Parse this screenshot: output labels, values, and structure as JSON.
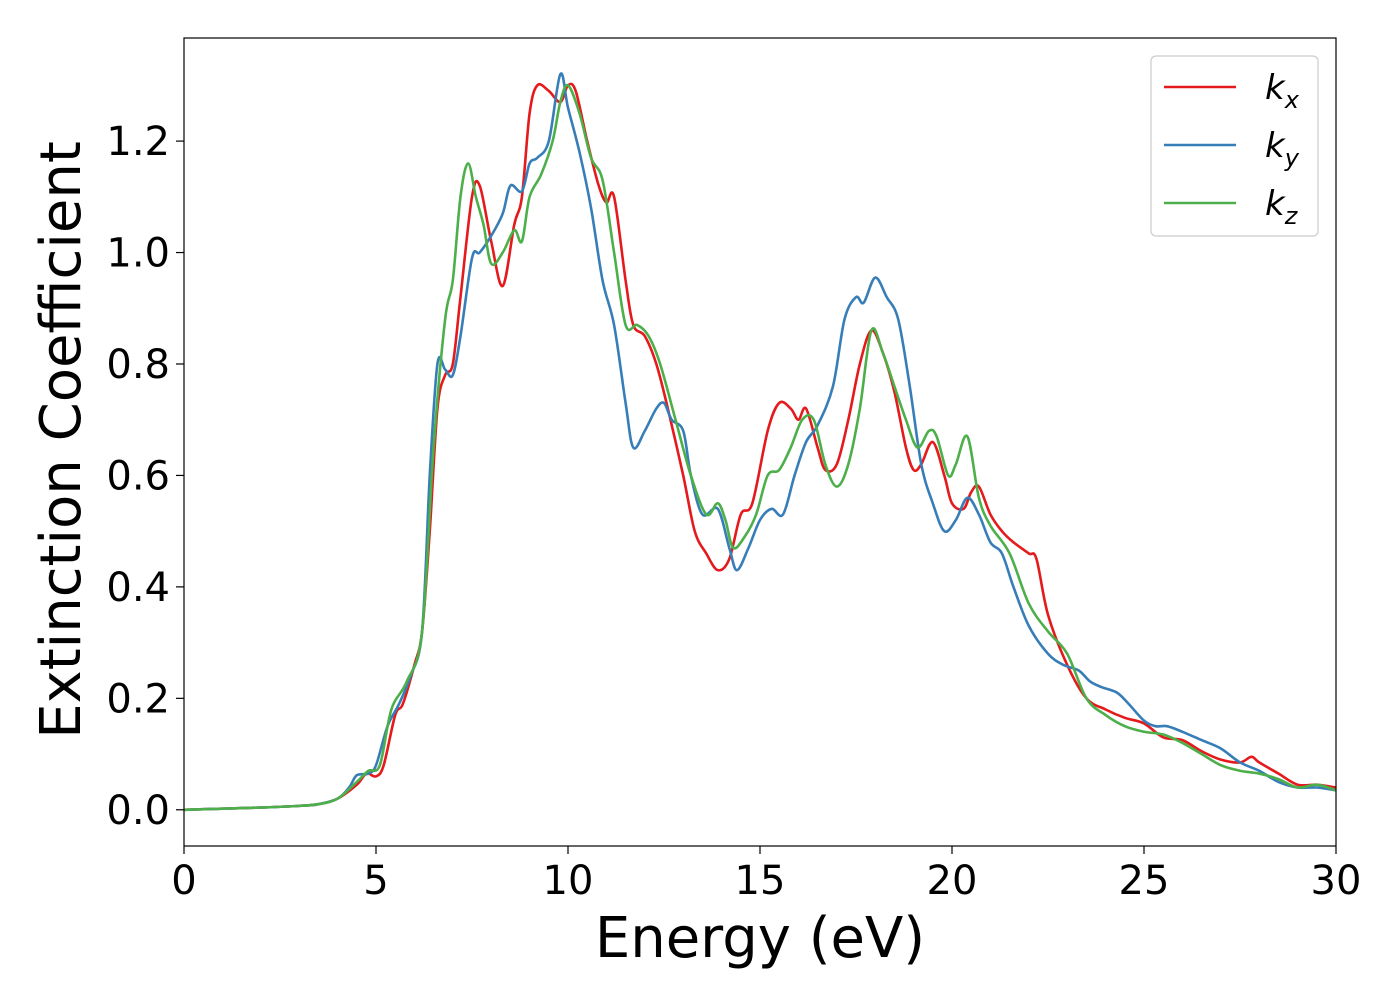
{
  "chart_data": {
    "type": "line",
    "title": "",
    "xlabel": "Energy (eV)",
    "ylabel": "Extinction Coefficient",
    "xlim": [
      0,
      30
    ],
    "ylim": [
      -0.065,
      1.385
    ],
    "xticks": [
      0,
      5,
      10,
      15,
      20,
      25,
      30
    ],
    "yticks": [
      0.0,
      0.2,
      0.4,
      0.6,
      0.8,
      1.0,
      1.2
    ],
    "xtick_labels": [
      "0",
      "5",
      "10",
      "15",
      "20",
      "25",
      "30"
    ],
    "ytick_labels": [
      "0.0",
      "0.2",
      "0.4",
      "0.6",
      "0.8",
      "1.0",
      "1.2"
    ],
    "grid": false,
    "legend": "top-right",
    "series": [
      {
        "name": "k_x",
        "label_base": "k",
        "label_sub": "x",
        "color": "#e41a1c",
        "points": [
          [
            0,
            0
          ],
          [
            1,
            0.002
          ],
          [
            2,
            0.004
          ],
          [
            3,
            0.007
          ],
          [
            3.5,
            0.01
          ],
          [
            4,
            0.02
          ],
          [
            4.5,
            0.045
          ],
          [
            4.75,
            0.065
          ],
          [
            5,
            0.06
          ],
          [
            5.2,
            0.08
          ],
          [
            5.5,
            0.17
          ],
          [
            5.7,
            0.19
          ],
          [
            6,
            0.26
          ],
          [
            6.2,
            0.32
          ],
          [
            6.4,
            0.5
          ],
          [
            6.6,
            0.72
          ],
          [
            6.8,
            0.78
          ],
          [
            7,
            0.8
          ],
          [
            7.2,
            0.92
          ],
          [
            7.5,
            1.1
          ],
          [
            7.7,
            1.12
          ],
          [
            8,
            1.02
          ],
          [
            8.3,
            0.94
          ],
          [
            8.6,
            1.05
          ],
          [
            8.8,
            1.1
          ],
          [
            9,
            1.25
          ],
          [
            9.2,
            1.3
          ],
          [
            9.5,
            1.29
          ],
          [
            9.8,
            1.27
          ],
          [
            10,
            1.3
          ],
          [
            10.2,
            1.29
          ],
          [
            10.5,
            1.2
          ],
          [
            10.8,
            1.12
          ],
          [
            11,
            1.09
          ],
          [
            11.2,
            1.1
          ],
          [
            11.5,
            0.95
          ],
          [
            11.7,
            0.87
          ],
          [
            12,
            0.85
          ],
          [
            12.3,
            0.8
          ],
          [
            12.6,
            0.72
          ],
          [
            13,
            0.6
          ],
          [
            13.3,
            0.5
          ],
          [
            13.6,
            0.46
          ],
          [
            13.9,
            0.43
          ],
          [
            14.2,
            0.45
          ],
          [
            14.5,
            0.53
          ],
          [
            14.8,
            0.55
          ],
          [
            15.2,
            0.68
          ],
          [
            15.5,
            0.73
          ],
          [
            15.8,
            0.72
          ],
          [
            16,
            0.7
          ],
          [
            16.2,
            0.72
          ],
          [
            16.5,
            0.65
          ],
          [
            16.7,
            0.61
          ],
          [
            17,
            0.62
          ],
          [
            17.3,
            0.7
          ],
          [
            17.6,
            0.8
          ],
          [
            17.9,
            0.86
          ],
          [
            18.2,
            0.82
          ],
          [
            18.5,
            0.75
          ],
          [
            18.8,
            0.65
          ],
          [
            19,
            0.61
          ],
          [
            19.2,
            0.62
          ],
          [
            19.5,
            0.66
          ],
          [
            19.8,
            0.6
          ],
          [
            20,
            0.55
          ],
          [
            20.3,
            0.54
          ],
          [
            20.5,
            0.57
          ],
          [
            20.7,
            0.58
          ],
          [
            21,
            0.53
          ],
          [
            21.3,
            0.5
          ],
          [
            21.6,
            0.48
          ],
          [
            22,
            0.46
          ],
          [
            22.2,
            0.45
          ],
          [
            22.5,
            0.35
          ],
          [
            23,
            0.26
          ],
          [
            23.5,
            0.2
          ],
          [
            24,
            0.18
          ],
          [
            24.5,
            0.165
          ],
          [
            25,
            0.155
          ],
          [
            25.5,
            0.13
          ],
          [
            26,
            0.125
          ],
          [
            26.5,
            0.105
          ],
          [
            27,
            0.09
          ],
          [
            27.5,
            0.085
          ],
          [
            27.8,
            0.095
          ],
          [
            28,
            0.085
          ],
          [
            28.5,
            0.065
          ],
          [
            29,
            0.045
          ],
          [
            29.5,
            0.045
          ],
          [
            30,
            0.04
          ]
        ]
      },
      {
        "name": "k_y",
        "label_base": "k",
        "label_sub": "y",
        "color": "#377eb8",
        "points": [
          [
            0,
            0
          ],
          [
            1,
            0.002
          ],
          [
            2,
            0.004
          ],
          [
            3,
            0.007
          ],
          [
            3.5,
            0.01
          ],
          [
            4,
            0.02
          ],
          [
            4.3,
            0.04
          ],
          [
            4.5,
            0.062
          ],
          [
            4.8,
            0.065
          ],
          [
            5,
            0.08
          ],
          [
            5.3,
            0.15
          ],
          [
            5.6,
            0.19
          ],
          [
            5.9,
            0.24
          ],
          [
            6.2,
            0.32
          ],
          [
            6.4,
            0.6
          ],
          [
            6.6,
            0.8
          ],
          [
            6.8,
            0.79
          ],
          [
            7,
            0.78
          ],
          [
            7.2,
            0.85
          ],
          [
            7.5,
            0.99
          ],
          [
            7.7,
            1.0
          ],
          [
            8,
            1.03
          ],
          [
            8.3,
            1.07
          ],
          [
            8.5,
            1.12
          ],
          [
            8.8,
            1.11
          ],
          [
            9,
            1.16
          ],
          [
            9.2,
            1.17
          ],
          [
            9.5,
            1.2
          ],
          [
            9.8,
            1.32
          ],
          [
            10,
            1.26
          ],
          [
            10.3,
            1.18
          ],
          [
            10.6,
            1.08
          ],
          [
            10.9,
            0.95
          ],
          [
            11.2,
            0.87
          ],
          [
            11.5,
            0.73
          ],
          [
            11.7,
            0.65
          ],
          [
            12,
            0.68
          ],
          [
            12.3,
            0.72
          ],
          [
            12.5,
            0.73
          ],
          [
            12.7,
            0.7
          ],
          [
            13,
            0.68
          ],
          [
            13.2,
            0.6
          ],
          [
            13.5,
            0.53
          ],
          [
            13.9,
            0.54
          ],
          [
            14.2,
            0.47
          ],
          [
            14.4,
            0.43
          ],
          [
            14.7,
            0.47
          ],
          [
            15,
            0.52
          ],
          [
            15.3,
            0.54
          ],
          [
            15.6,
            0.53
          ],
          [
            15.9,
            0.6
          ],
          [
            16.2,
            0.66
          ],
          [
            16.5,
            0.69
          ],
          [
            16.9,
            0.76
          ],
          [
            17.2,
            0.88
          ],
          [
            17.5,
            0.92
          ],
          [
            17.7,
            0.91
          ],
          [
            18,
            0.955
          ],
          [
            18.3,
            0.92
          ],
          [
            18.6,
            0.88
          ],
          [
            18.9,
            0.76
          ],
          [
            19.2,
            0.62
          ],
          [
            19.5,
            0.55
          ],
          [
            19.8,
            0.5
          ],
          [
            20.1,
            0.52
          ],
          [
            20.4,
            0.56
          ],
          [
            20.7,
            0.53
          ],
          [
            21,
            0.48
          ],
          [
            21.3,
            0.46
          ],
          [
            21.6,
            0.4
          ],
          [
            22,
            0.33
          ],
          [
            22.5,
            0.28
          ],
          [
            22.9,
            0.26
          ],
          [
            23.3,
            0.25
          ],
          [
            23.6,
            0.23
          ],
          [
            23.9,
            0.22
          ],
          [
            24.3,
            0.21
          ],
          [
            24.6,
            0.19
          ],
          [
            25,
            0.16
          ],
          [
            25.3,
            0.15
          ],
          [
            25.6,
            0.15
          ],
          [
            26,
            0.14
          ],
          [
            26.5,
            0.125
          ],
          [
            27,
            0.11
          ],
          [
            27.5,
            0.085
          ],
          [
            28,
            0.07
          ],
          [
            28.5,
            0.05
          ],
          [
            29,
            0.04
          ],
          [
            29.5,
            0.04
          ],
          [
            30,
            0.035
          ]
        ]
      },
      {
        "name": "k_z",
        "label_base": "k",
        "label_sub": "z",
        "color": "#4daf4a",
        "points": [
          [
            0,
            0
          ],
          [
            1,
            0.002
          ],
          [
            2,
            0.004
          ],
          [
            3,
            0.007
          ],
          [
            3.5,
            0.01
          ],
          [
            4,
            0.02
          ],
          [
            4.5,
            0.05
          ],
          [
            4.8,
            0.07
          ],
          [
            5.1,
            0.08
          ],
          [
            5.4,
            0.18
          ],
          [
            5.8,
            0.23
          ],
          [
            6.2,
            0.32
          ],
          [
            6.5,
            0.65
          ],
          [
            6.8,
            0.88
          ],
          [
            7,
            0.95
          ],
          [
            7.2,
            1.1
          ],
          [
            7.4,
            1.16
          ],
          [
            7.6,
            1.1
          ],
          [
            7.8,
            1.05
          ],
          [
            8,
            0.98
          ],
          [
            8.3,
            1.0
          ],
          [
            8.6,
            1.04
          ],
          [
            8.8,
            1.02
          ],
          [
            9,
            1.1
          ],
          [
            9.3,
            1.14
          ],
          [
            9.6,
            1.2
          ],
          [
            9.8,
            1.27
          ],
          [
            10,
            1.3
          ],
          [
            10.3,
            1.25
          ],
          [
            10.6,
            1.17
          ],
          [
            10.9,
            1.13
          ],
          [
            11.2,
            1.0
          ],
          [
            11.5,
            0.87
          ],
          [
            11.8,
            0.87
          ],
          [
            12.1,
            0.85
          ],
          [
            12.4,
            0.8
          ],
          [
            12.8,
            0.7
          ],
          [
            13.2,
            0.6
          ],
          [
            13.6,
            0.53
          ],
          [
            13.9,
            0.55
          ],
          [
            14.1,
            0.52
          ],
          [
            14.3,
            0.47
          ],
          [
            14.6,
            0.49
          ],
          [
            14.9,
            0.53
          ],
          [
            15.2,
            0.6
          ],
          [
            15.5,
            0.61
          ],
          [
            15.8,
            0.65
          ],
          [
            16.1,
            0.7
          ],
          [
            16.4,
            0.7
          ],
          [
            16.7,
            0.62
          ],
          [
            17,
            0.58
          ],
          [
            17.3,
            0.62
          ],
          [
            17.6,
            0.72
          ],
          [
            17.9,
            0.86
          ],
          [
            18.2,
            0.82
          ],
          [
            18.5,
            0.76
          ],
          [
            18.8,
            0.7
          ],
          [
            19.1,
            0.65
          ],
          [
            19.4,
            0.68
          ],
          [
            19.6,
            0.67
          ],
          [
            19.9,
            0.6
          ],
          [
            20.1,
            0.62
          ],
          [
            20.4,
            0.67
          ],
          [
            20.7,
            0.56
          ],
          [
            21,
            0.51
          ],
          [
            21.5,
            0.46
          ],
          [
            22,
            0.37
          ],
          [
            22.5,
            0.32
          ],
          [
            23,
            0.28
          ],
          [
            23.5,
            0.2
          ],
          [
            24,
            0.17
          ],
          [
            24.5,
            0.15
          ],
          [
            25,
            0.14
          ],
          [
            25.5,
            0.135
          ],
          [
            26,
            0.12
          ],
          [
            26.5,
            0.1
          ],
          [
            27,
            0.08
          ],
          [
            27.5,
            0.07
          ],
          [
            28,
            0.065
          ],
          [
            28.5,
            0.055
          ],
          [
            29,
            0.04
          ],
          [
            29.5,
            0.045
          ],
          [
            30,
            0.035
          ]
        ]
      }
    ]
  }
}
